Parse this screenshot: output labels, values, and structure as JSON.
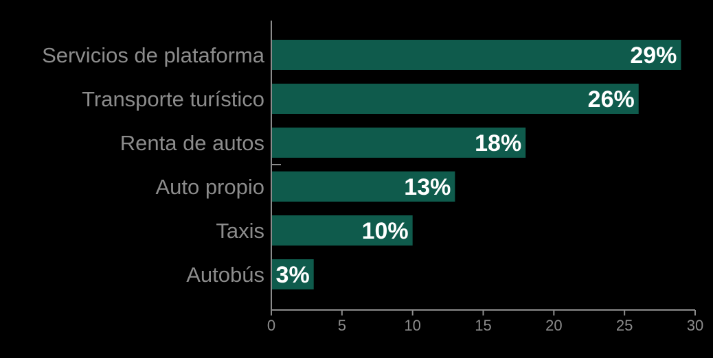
{
  "chart_data": {
    "type": "bar",
    "orientation": "horizontal",
    "categories": [
      "Servicios de plataforma",
      "Transporte turístico",
      "Renta de autos",
      "Auto propio",
      "Taxis",
      "Autobús"
    ],
    "values": [
      29,
      26,
      18,
      13,
      10,
      3
    ],
    "value_labels": [
      "29%",
      "26%",
      "18%",
      "13%",
      "10%",
      "3%"
    ],
    "title": "",
    "xlabel": "",
    "ylabel": "",
    "xlim": [
      0,
      30
    ],
    "x_ticks": [
      "0",
      "5",
      "10",
      "15",
      "20",
      "25",
      "30"
    ],
    "grid": false,
    "legend": "none",
    "colors": {
      "bar": "#0f5b4c",
      "background": "#000000",
      "axis": "#8c8c8c",
      "category_text": "#8c8c8c",
      "value_text": "#ffffff"
    }
  }
}
